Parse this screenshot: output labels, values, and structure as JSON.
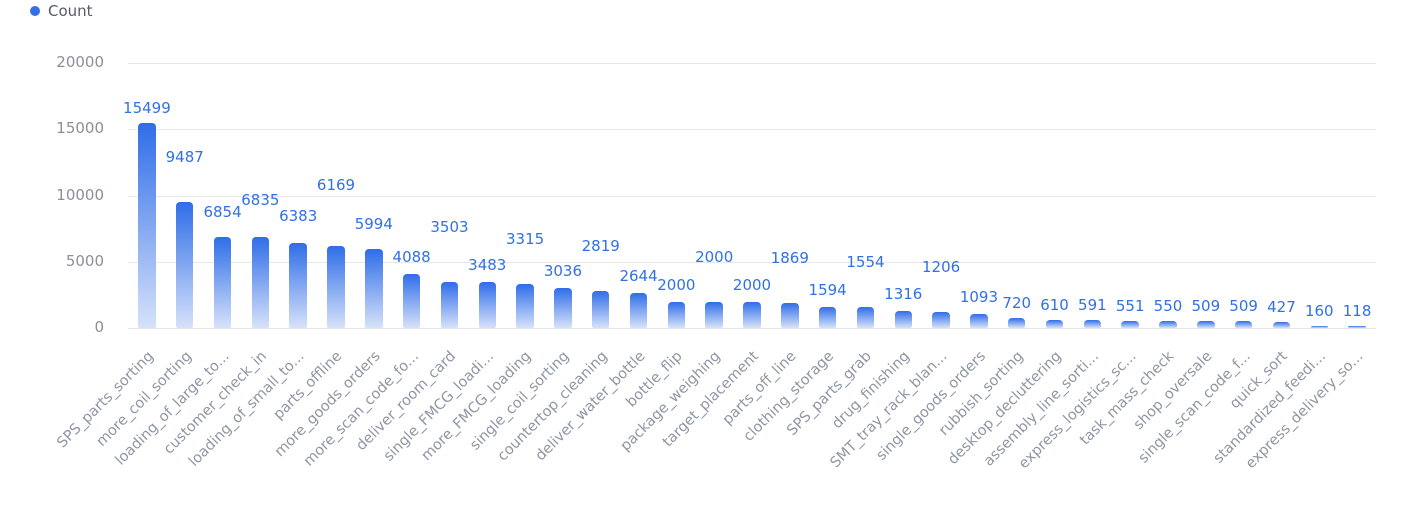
{
  "legend": {
    "label": "Count",
    "color": "#3170e6"
  },
  "colors": {
    "bar_top": "#2f6de8",
    "bar_bottom": "#d6e2fa",
    "label": "#3170e6",
    "axis_text": "#8a8f99",
    "grid": "#e6e8eb"
  },
  "y_axis": {
    "ticks": [
      "0",
      "5000",
      "10000",
      "15000",
      "20000"
    ]
  },
  "chart_data": {
    "type": "bar",
    "title": "",
    "xlabel": "",
    "ylabel": "",
    "ylim": [
      0,
      20000
    ],
    "grid": true,
    "legend_position": "top-left",
    "series": [
      {
        "name": "Count",
        "values": [
          15499,
          9487,
          6854,
          6835,
          6383,
          6169,
          5994,
          4088,
          3503,
          3483,
          3315,
          3036,
          2819,
          2644,
          2000,
          2000,
          2000,
          1869,
          1594,
          1554,
          1316,
          1206,
          1093,
          720,
          610,
          591,
          551,
          550,
          509,
          509,
          427,
          160,
          118
        ]
      }
    ],
    "categories": [
      "SPS_parts_sorting",
      "more_coil_sorting",
      "loading_of_large_to...",
      "customer_check_in",
      "loading_of_small_to...",
      "parts_offline",
      "more_goods_orders",
      "more_scan_code_fo...",
      "deliver_room_card",
      "single_FMCG_loadi...",
      "more_FMCG_loading",
      "single_coil_sorting",
      "countertop_cleaning",
      "deliver_water_bottle",
      "bottle_flip",
      "package_weighing",
      "target_placement",
      "parts_off_line",
      "clothing_storage",
      "SPS_parts_grab",
      "drug_finishing",
      "SMT_tray_rack_blan...",
      "single_goods_orders",
      "rubbish_sorting",
      "desktop_decluttering",
      "assembly_line_sorti...",
      "express_logistics_sc...",
      "task_mass_check",
      "shop_oversale",
      "single_scan_code_f...",
      "quick_sort",
      "standardized_feedi...",
      "express_delivery_so..."
    ],
    "label_offsets": [
      0,
      40,
      20,
      32,
      22,
      56,
      20,
      12,
      50,
      12,
      40,
      12,
      40,
      12,
      12,
      40,
      12,
      40,
      12,
      40,
      12,
      40,
      12,
      10,
      10,
      10,
      10,
      10,
      10,
      10,
      10,
      10,
      10
    ]
  }
}
